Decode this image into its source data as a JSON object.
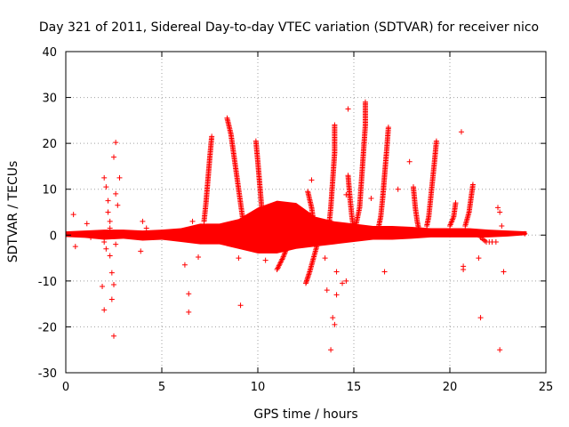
{
  "chart_data": {
    "type": "scatter",
    "title": "Day 321 of 2011, Sidereal Day-to-day VTEC variation (SDTVAR) for receiver nico",
    "xlabel": "GPS time / hours",
    "ylabel": "SDTVAR / TECUs",
    "xlim": [
      0,
      25
    ],
    "ylim": [
      -30,
      40
    ],
    "xticks": [
      0,
      5,
      10,
      15,
      20,
      25
    ],
    "yticks": [
      -30,
      -20,
      -10,
      0,
      10,
      20,
      30,
      40
    ],
    "xtick_labels": [
      "0",
      "5",
      "10",
      "15",
      "20",
      "25"
    ],
    "ytick_labels": [
      "-30",
      "-20",
      "-10",
      "0",
      "10",
      "20",
      "30",
      "40"
    ],
    "grid": true,
    "marker": "+",
    "color": "#ff0000",
    "series": [
      {
        "name": "SDTVAR",
        "baseline_band": [
          [
            0.0,
            -0.4,
            0.8
          ],
          [
            1.0,
            -0.6,
            1.0
          ],
          [
            2.0,
            -1.0,
            1.2
          ],
          [
            3.0,
            -0.8,
            1.2
          ],
          [
            4.0,
            -1.2,
            1.0
          ],
          [
            5.0,
            -1.0,
            1.2
          ],
          [
            6.0,
            -1.5,
            1.5
          ],
          [
            7.0,
            -2.0,
            2.5
          ],
          [
            8.0,
            -2.0,
            2.5
          ],
          [
            9.0,
            -3.0,
            3.5
          ],
          [
            10.0,
            -4.0,
            6.0
          ],
          [
            11.0,
            -4.0,
            7.5
          ],
          [
            12.0,
            -3.0,
            7.0
          ],
          [
            13.0,
            -2.5,
            4.0
          ],
          [
            14.0,
            -2.0,
            3.0
          ],
          [
            15.0,
            -1.5,
            2.5
          ],
          [
            16.0,
            -1.0,
            2.0
          ],
          [
            17.0,
            -1.0,
            2.0
          ],
          [
            18.0,
            -0.8,
            1.8
          ],
          [
            19.0,
            -0.5,
            1.5
          ],
          [
            20.0,
            -0.5,
            1.5
          ],
          [
            21.0,
            -0.5,
            1.5
          ],
          [
            22.0,
            -0.5,
            1.2
          ],
          [
            23.0,
            -0.3,
            1.0
          ],
          [
            24.0,
            0.0,
            0.8
          ]
        ],
        "arcs": [
          [
            [
              7.6,
              21.5
            ],
            [
              7.5,
              17
            ],
            [
              7.4,
              12
            ],
            [
              7.3,
              7
            ],
            [
              7.2,
              3
            ]
          ],
          [
            [
              8.4,
              25.5
            ],
            [
              8.6,
              22
            ],
            [
              8.8,
              16
            ],
            [
              9.0,
              10
            ],
            [
              9.2,
              4
            ],
            [
              9.4,
              1
            ]
          ],
          [
            [
              9.9,
              20.5
            ],
            [
              10.0,
              16
            ],
            [
              10.1,
              11
            ],
            [
              10.2,
              6
            ],
            [
              10.3,
              2
            ]
          ],
          [
            [
              12.6,
              9.5
            ],
            [
              12.8,
              6
            ],
            [
              12.9,
              3
            ],
            [
              13.0,
              1
            ]
          ],
          [
            [
              13.1,
              -2
            ],
            [
              12.9,
              -5
            ],
            [
              12.7,
              -8
            ],
            [
              12.5,
              -10.5
            ]
          ],
          [
            [
              11.5,
              -3
            ],
            [
              11.3,
              -5
            ],
            [
              11.0,
              -7.5
            ]
          ],
          [
            [
              14.0,
              24
            ],
            [
              14.0,
              18
            ],
            [
              13.9,
              12
            ],
            [
              13.8,
              6
            ],
            [
              13.7,
              2
            ]
          ],
          [
            [
              14.7,
              13
            ],
            [
              14.8,
              8
            ],
            [
              14.9,
              4
            ],
            [
              15.0,
              1
            ]
          ],
          [
            [
              15.6,
              29
            ],
            [
              15.6,
              24
            ],
            [
              15.5,
              18
            ],
            [
              15.4,
              12
            ],
            [
              15.3,
              6
            ],
            [
              15.1,
              2
            ]
          ],
          [
            [
              16.8,
              23.5
            ],
            [
              16.7,
              18
            ],
            [
              16.6,
              13
            ],
            [
              16.5,
              8
            ],
            [
              16.4,
              4
            ],
            [
              16.3,
              2
            ]
          ],
          [
            [
              18.1,
              10.5
            ],
            [
              18.2,
              6
            ],
            [
              18.3,
              3
            ],
            [
              18.4,
              1
            ]
          ],
          [
            [
              19.3,
              20.5
            ],
            [
              19.2,
              16
            ],
            [
              19.1,
              12
            ],
            [
              19.0,
              8
            ],
            [
              18.9,
              4
            ],
            [
              18.8,
              2
            ]
          ],
          [
            [
              20.3,
              7
            ],
            [
              20.2,
              4
            ],
            [
              20.0,
              2
            ]
          ],
          [
            [
              21.2,
              11
            ],
            [
              21.1,
              8
            ],
            [
              21.0,
              5
            ],
            [
              20.8,
              2
            ]
          ],
          [
            [
              21.6,
              -0.5
            ],
            [
              21.9,
              -1.5
            ],
            [
              22.2,
              -1.5
            ]
          ]
        ],
        "points": [
          [
            0.4,
            4.5
          ],
          [
            0.5,
            -2.5
          ],
          [
            1.1,
            2.5
          ],
          [
            1.3,
            -0.5
          ],
          [
            1.9,
            -11.2
          ],
          [
            2.0,
            -16.3
          ],
          [
            2.0,
            12.5
          ],
          [
            2.1,
            10.5
          ],
          [
            2.2,
            7.5
          ],
          [
            2.2,
            5.0
          ],
          [
            2.3,
            3.0
          ],
          [
            2.3,
            -4.5
          ],
          [
            2.4,
            -8.2
          ],
          [
            2.4,
            -14.0
          ],
          [
            2.5,
            -22.0
          ],
          [
            2.5,
            17.0
          ],
          [
            2.6,
            20.2
          ],
          [
            2.6,
            9.0
          ],
          [
            2.7,
            6.5
          ],
          [
            2.5,
            -10.8
          ],
          [
            2.8,
            12.5
          ],
          [
            2.1,
            -3.0
          ],
          [
            2.0,
            -1.5
          ],
          [
            2.3,
            1.5
          ],
          [
            2.6,
            -2.0
          ],
          [
            3.9,
            -3.5
          ],
          [
            4.0,
            3.0
          ],
          [
            4.2,
            1.5
          ],
          [
            6.2,
            -6.5
          ],
          [
            6.4,
            -12.8
          ],
          [
            6.4,
            -16.8
          ],
          [
            6.6,
            3.0
          ],
          [
            6.9,
            -4.8
          ],
          [
            9.1,
            -15.3
          ],
          [
            9.0,
            -5.0
          ],
          [
            10.4,
            -5.5
          ],
          [
            12.4,
            -2.0
          ],
          [
            12.8,
            12.0
          ],
          [
            13.5,
            -5.0
          ],
          [
            13.6,
            -12.0
          ],
          [
            13.8,
            -25.0
          ],
          [
            13.9,
            -18.0
          ],
          [
            14.0,
            -19.5
          ],
          [
            14.1,
            -13.0
          ],
          [
            14.1,
            -8.0
          ],
          [
            14.4,
            -10.5
          ],
          [
            14.6,
            -10.0
          ],
          [
            14.6,
            8.8
          ],
          [
            14.7,
            27.5
          ],
          [
            15.9,
            8.0
          ],
          [
            16.6,
            -8.0
          ],
          [
            17.3,
            10.0
          ],
          [
            17.9,
            16.0
          ],
          [
            20.6,
            22.5
          ],
          [
            20.7,
            -6.8
          ],
          [
            20.7,
            -7.5
          ],
          [
            21.5,
            -5.0
          ],
          [
            21.6,
            -18.0
          ],
          [
            22.6,
            -25.0
          ],
          [
            22.5,
            6.0
          ],
          [
            22.6,
            5.0
          ],
          [
            22.7,
            2.0
          ],
          [
            22.8,
            -8.0
          ],
          [
            22.4,
            -1.5
          ],
          [
            23.9,
            0.3
          ]
        ]
      }
    ]
  }
}
